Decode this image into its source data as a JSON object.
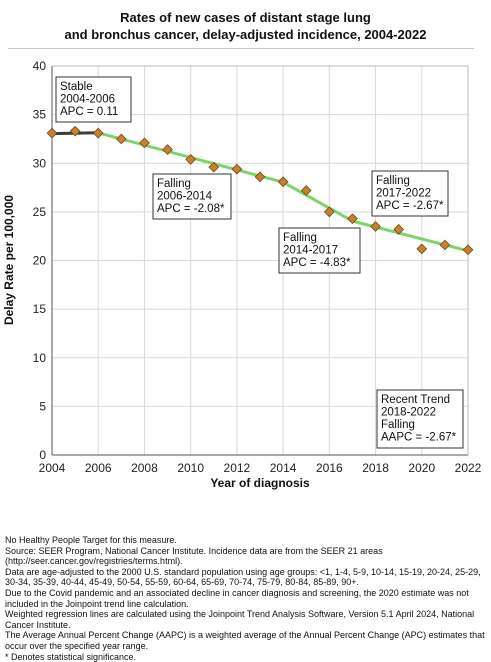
{
  "chart_data": {
    "type": "line",
    "title": "Rates of new cases of distant stage lung\nand bronchus cancer, delay-adjusted incidence, 2004-2022",
    "xlabel": "Year of diagnosis",
    "ylabel": "Delay Rate per 100,000",
    "xlim": [
      2004,
      2022
    ],
    "ylim": [
      0,
      40
    ],
    "xticks": [
      "2004",
      "2006",
      "2008",
      "2010",
      "2012",
      "2014",
      "2016",
      "2018",
      "2020",
      "2022"
    ],
    "yticks": [
      "0",
      "5",
      "10",
      "15",
      "20",
      "25",
      "30",
      "35",
      "40"
    ],
    "grid": true,
    "observed": {
      "x": [
        2004,
        2005,
        2006,
        2007,
        2008,
        2009,
        2010,
        2011,
        2012,
        2013,
        2014,
        2015,
        2016,
        2017,
        2018,
        2019,
        2020,
        2021,
        2022
      ],
      "y": [
        33.1,
        33.3,
        33.1,
        32.5,
        32.1,
        31.4,
        30.4,
        29.6,
        29.4,
        28.6,
        28.1,
        27.2,
        25.0,
        24.3,
        23.5,
        23.2,
        21.2,
        21.6,
        21.1
      ],
      "color": "#c8802c"
    },
    "trend_segments": [
      {
        "x": [
          2004,
          2006
        ],
        "y": [
          33.05,
          33.13
        ],
        "color": "#3d3d3d"
      },
      {
        "x": [
          2006,
          2014
        ],
        "y": [
          33.13,
          28.05
        ],
        "color": "#7ed46a"
      },
      {
        "x": [
          2014,
          2017
        ],
        "y": [
          28.05,
          24.05
        ],
        "color": "#7ed46a"
      },
      {
        "x": [
          2017,
          2022
        ],
        "y": [
          24.05,
          21.0
        ],
        "color": "#7ed46a"
      }
    ],
    "annotations": [
      {
        "lines": [
          "Stable",
          "2004-2006",
          "APC =  0.11"
        ]
      },
      {
        "lines": [
          "Falling",
          "2006-2014",
          "APC = -2.08*"
        ]
      },
      {
        "lines": [
          "Falling",
          "2014-2017",
          "APC = -4.83*"
        ]
      },
      {
        "lines": [
          "Falling",
          "2017-2022",
          "APC = -2.67*"
        ]
      },
      {
        "lines": [
          "Recent Trend",
          "2018-2022",
          "Falling",
          "AAPC = -2.67*"
        ]
      }
    ]
  },
  "footnotes": [
    "No Healthy People Target for this measure.",
    "Source: SEER Program, National Cancer Institute. Incidence data are from the SEER 21 areas (http://seer.cancer.gov/registries/terms.html).",
    "Data are age-adjusted to the 2000 U.S. standard population using age groups: <1, 1-4, 5-9, 10-14, 15-19, 20-24, 25-29, 30-34, 35-39, 40-44, 45-49, 50-54, 55-59, 60-64, 65-69, 70-74, 75-79, 80-84, 85-89, 90+.",
    "Due to the Covid pandemic and an associated decline in cancer diagnosis and screening, the 2020 estimate was not included in the Joinpoint trend line calculation.",
    "Weighted regression lines are calculated using the Joinpoint Trend Analysis Software, Version 5.1 April 2024, National Cancer Institute.",
    "The Average Annual Percent Change (AAPC) is a weighted average of the Annual Percent Change (APC) estimates that occur over the specified year range.",
    "* Denotes statistical significance."
  ]
}
